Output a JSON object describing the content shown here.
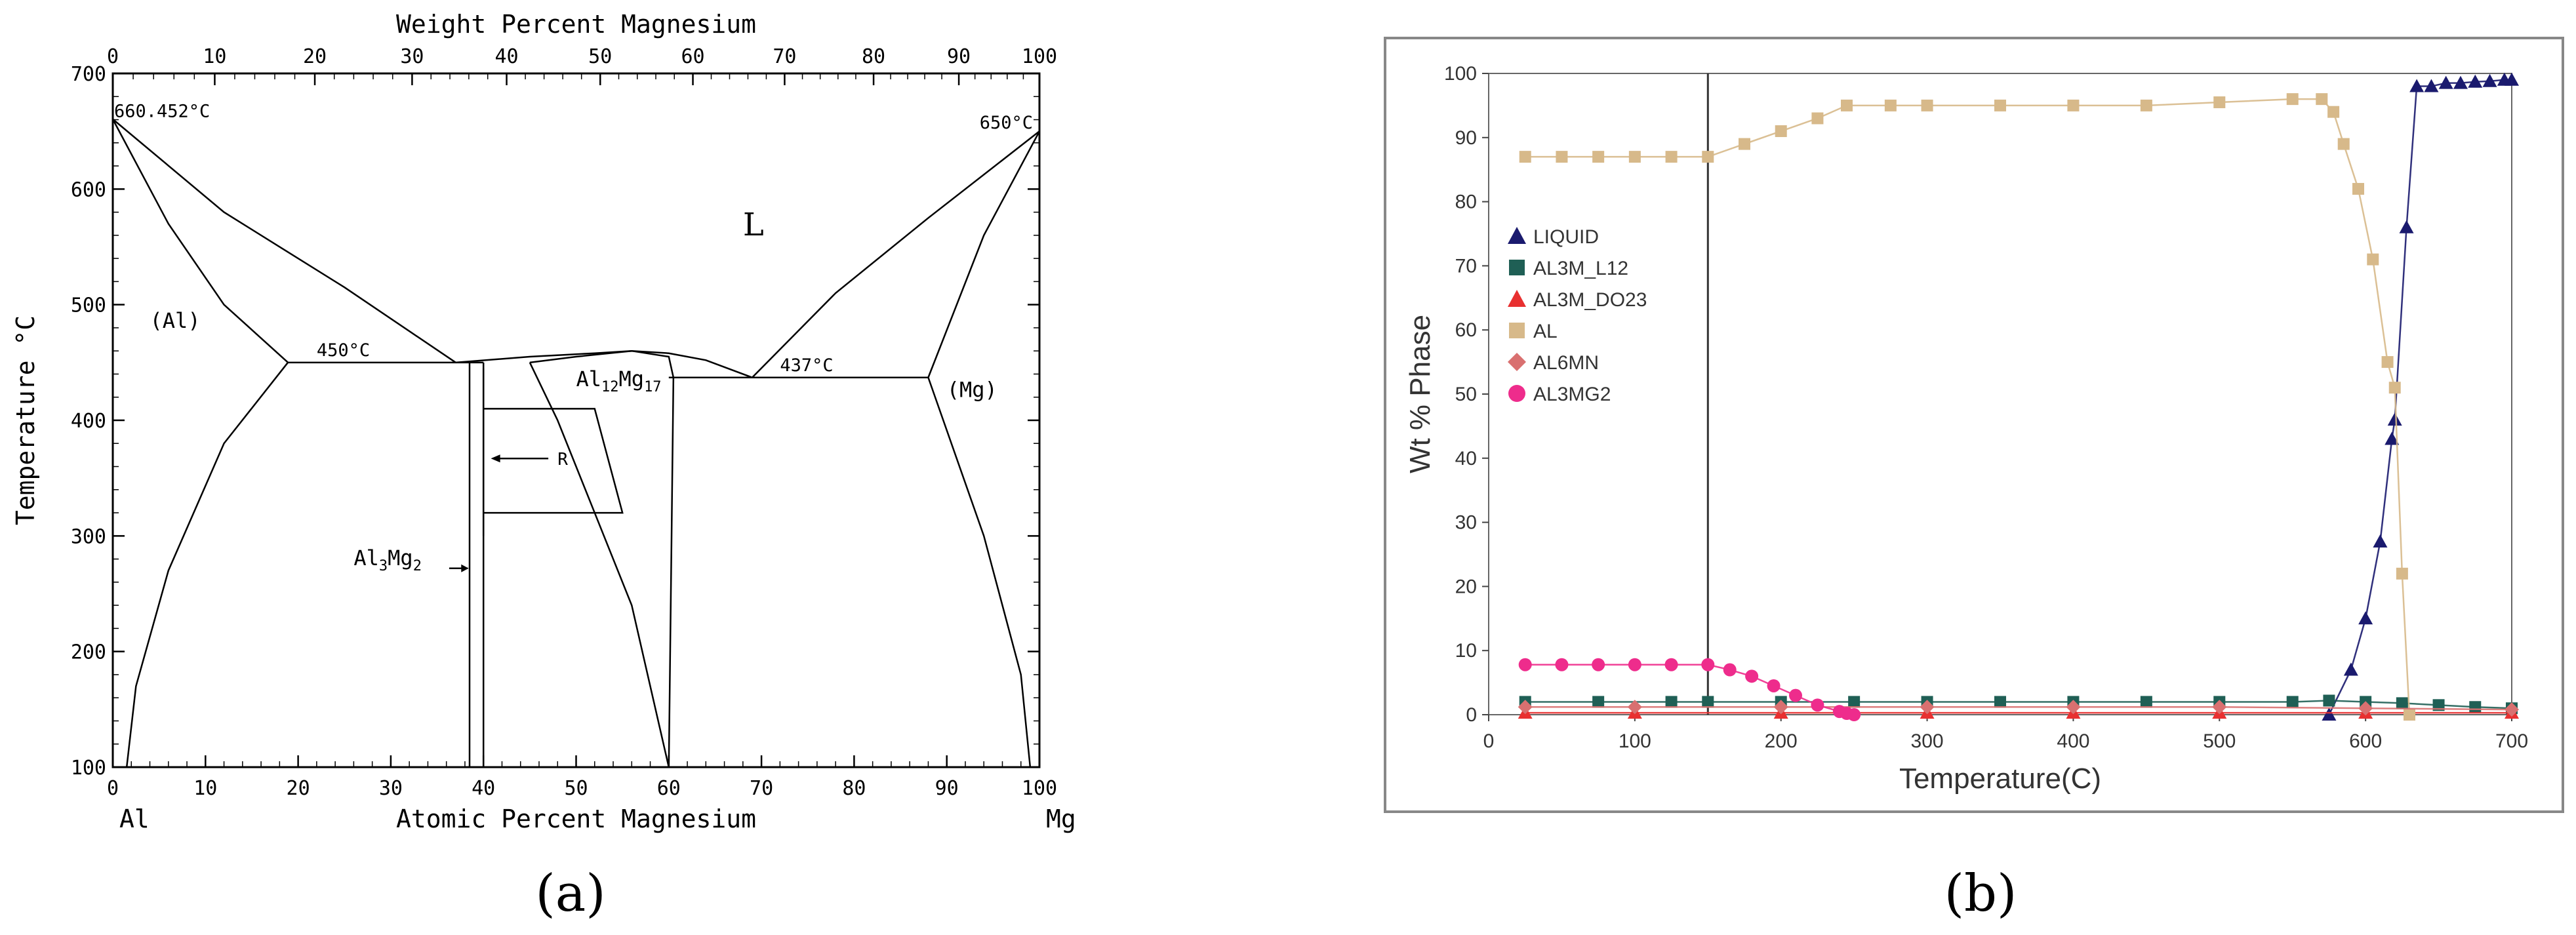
{
  "figure_labels": {
    "a": "(a)",
    "b": "(b)"
  },
  "chart_data": [
    {
      "type": "phase_diagram",
      "id": "a",
      "top_axis_title": "Weight Percent Magnesium",
      "bottom_axis_title": "Atomic Percent Magnesium",
      "ylabel": "Temperature °C",
      "xlim": [
        0,
        100
      ],
      "ylim": [
        100,
        700
      ],
      "top_ticks": [
        0,
        10,
        20,
        30,
        40,
        50,
        60,
        70,
        80,
        90,
        100
      ],
      "bottom_ticks": [
        0,
        10,
        20,
        30,
        40,
        50,
        60,
        70,
        80,
        90,
        100
      ],
      "y_ticks": [
        100,
        200,
        300,
        400,
        500,
        600,
        700
      ],
      "element_left": "Al",
      "element_right": "Mg",
      "annotations": {
        "al_melting": "660.452°C",
        "mg_melting": "650°C",
        "eutectic_left": "450°C",
        "eutectic_right": "437°C",
        "liquid": "L",
        "al_phase": "(Al)",
        "mg_phase": "(Mg)",
        "phase_al12": "Al",
        "phase_al12_sub1": "12",
        "phase_al12_mid": "Mg",
        "phase_al12_sub2": "17",
        "phase_al3": "Al",
        "phase_al3_sub1": "3",
        "phase_al3_mid": "Mg",
        "phase_al3_sub2": "2",
        "r_phase": "R"
      },
      "key_points": {
        "al_melt_temp": 660.452,
        "mg_melt_temp": 650,
        "eutectic_left_temp": 450,
        "eutectic_left_comp": 37,
        "eutectic_right_temp": 437,
        "eutectic_right_comp": 69,
        "al12mg17_max_temp": 460
      }
    },
    {
      "type": "scatter-line",
      "id": "b",
      "xlabel": "Temperature(C)",
      "ylabel": "Wt % Phase",
      "xlim": [
        0,
        700
      ],
      "ylim": [
        0,
        100
      ],
      "x_ticks": [
        0,
        100,
        200,
        300,
        400,
        500,
        600,
        700
      ],
      "y_ticks": [
        0,
        10,
        20,
        30,
        40,
        50,
        60,
        70,
        80,
        90,
        100
      ],
      "vertical_marker_x": 150,
      "legend_position": "upper-left",
      "series": [
        {
          "name": "LIQUID",
          "color": "#1a1a6e",
          "marker": "triangle",
          "x": [
            575,
            590,
            600,
            610,
            618,
            620,
            628,
            635,
            645,
            655,
            665,
            675,
            685,
            695,
            700
          ],
          "y": [
            0,
            7,
            15,
            27,
            43,
            46,
            76,
            98,
            98,
            98.5,
            98.5,
            98.7,
            98.8,
            99,
            99
          ]
        },
        {
          "name": "AL3M_L12",
          "color": "#1f5f55",
          "marker": "square",
          "x": [
            25,
            75,
            125,
            150,
            200,
            250,
            300,
            350,
            400,
            450,
            500,
            550,
            575,
            600,
            625,
            650,
            675,
            700
          ],
          "y": [
            2,
            2,
            2,
            2,
            2,
            2,
            2,
            2,
            2,
            2,
            2,
            2,
            2.2,
            2,
            1.8,
            1.5,
            1.2,
            1
          ]
        },
        {
          "name": "AL3M_DO23",
          "color": "#e83030",
          "marker": "triangle",
          "x": [
            25,
            100,
            200,
            300,
            400,
            500,
            600,
            700
          ],
          "y": [
            0.3,
            0.3,
            0.3,
            0.3,
            0.3,
            0.3,
            0.3,
            0.3
          ]
        },
        {
          "name": "AL",
          "color": "#d7b98a",
          "marker": "square",
          "x": [
            25,
            50,
            75,
            100,
            125,
            150,
            175,
            200,
            225,
            245,
            275,
            300,
            350,
            400,
            450,
            500,
            550,
            570,
            578,
            585,
            595,
            605,
            615,
            620,
            625,
            630
          ],
          "y": [
            87,
            87,
            87,
            87,
            87,
            87,
            89,
            91,
            93,
            95,
            95,
            95,
            95,
            95,
            95,
            95.5,
            96,
            96,
            94,
            89,
            82,
            71,
            55,
            51,
            22,
            0
          ]
        },
        {
          "name": "AL6MN",
          "color": "#d97070",
          "marker": "diamond",
          "x": [
            25,
            100,
            200,
            300,
            400,
            500,
            600,
            700
          ],
          "y": [
            1.2,
            1.2,
            1.2,
            1.2,
            1.2,
            1.2,
            1.0,
            0.8
          ]
        },
        {
          "name": "AL3MG2",
          "color": "#ee2c8c",
          "marker": "circle",
          "x": [
            25,
            50,
            75,
            100,
            125,
            150,
            165,
            180,
            195,
            210,
            225,
            240,
            245,
            250
          ],
          "y": [
            7.8,
            7.8,
            7.8,
            7.8,
            7.8,
            7.8,
            7,
            6,
            4.5,
            3,
            1.5,
            0.5,
            0.2,
            0
          ]
        }
      ]
    }
  ]
}
